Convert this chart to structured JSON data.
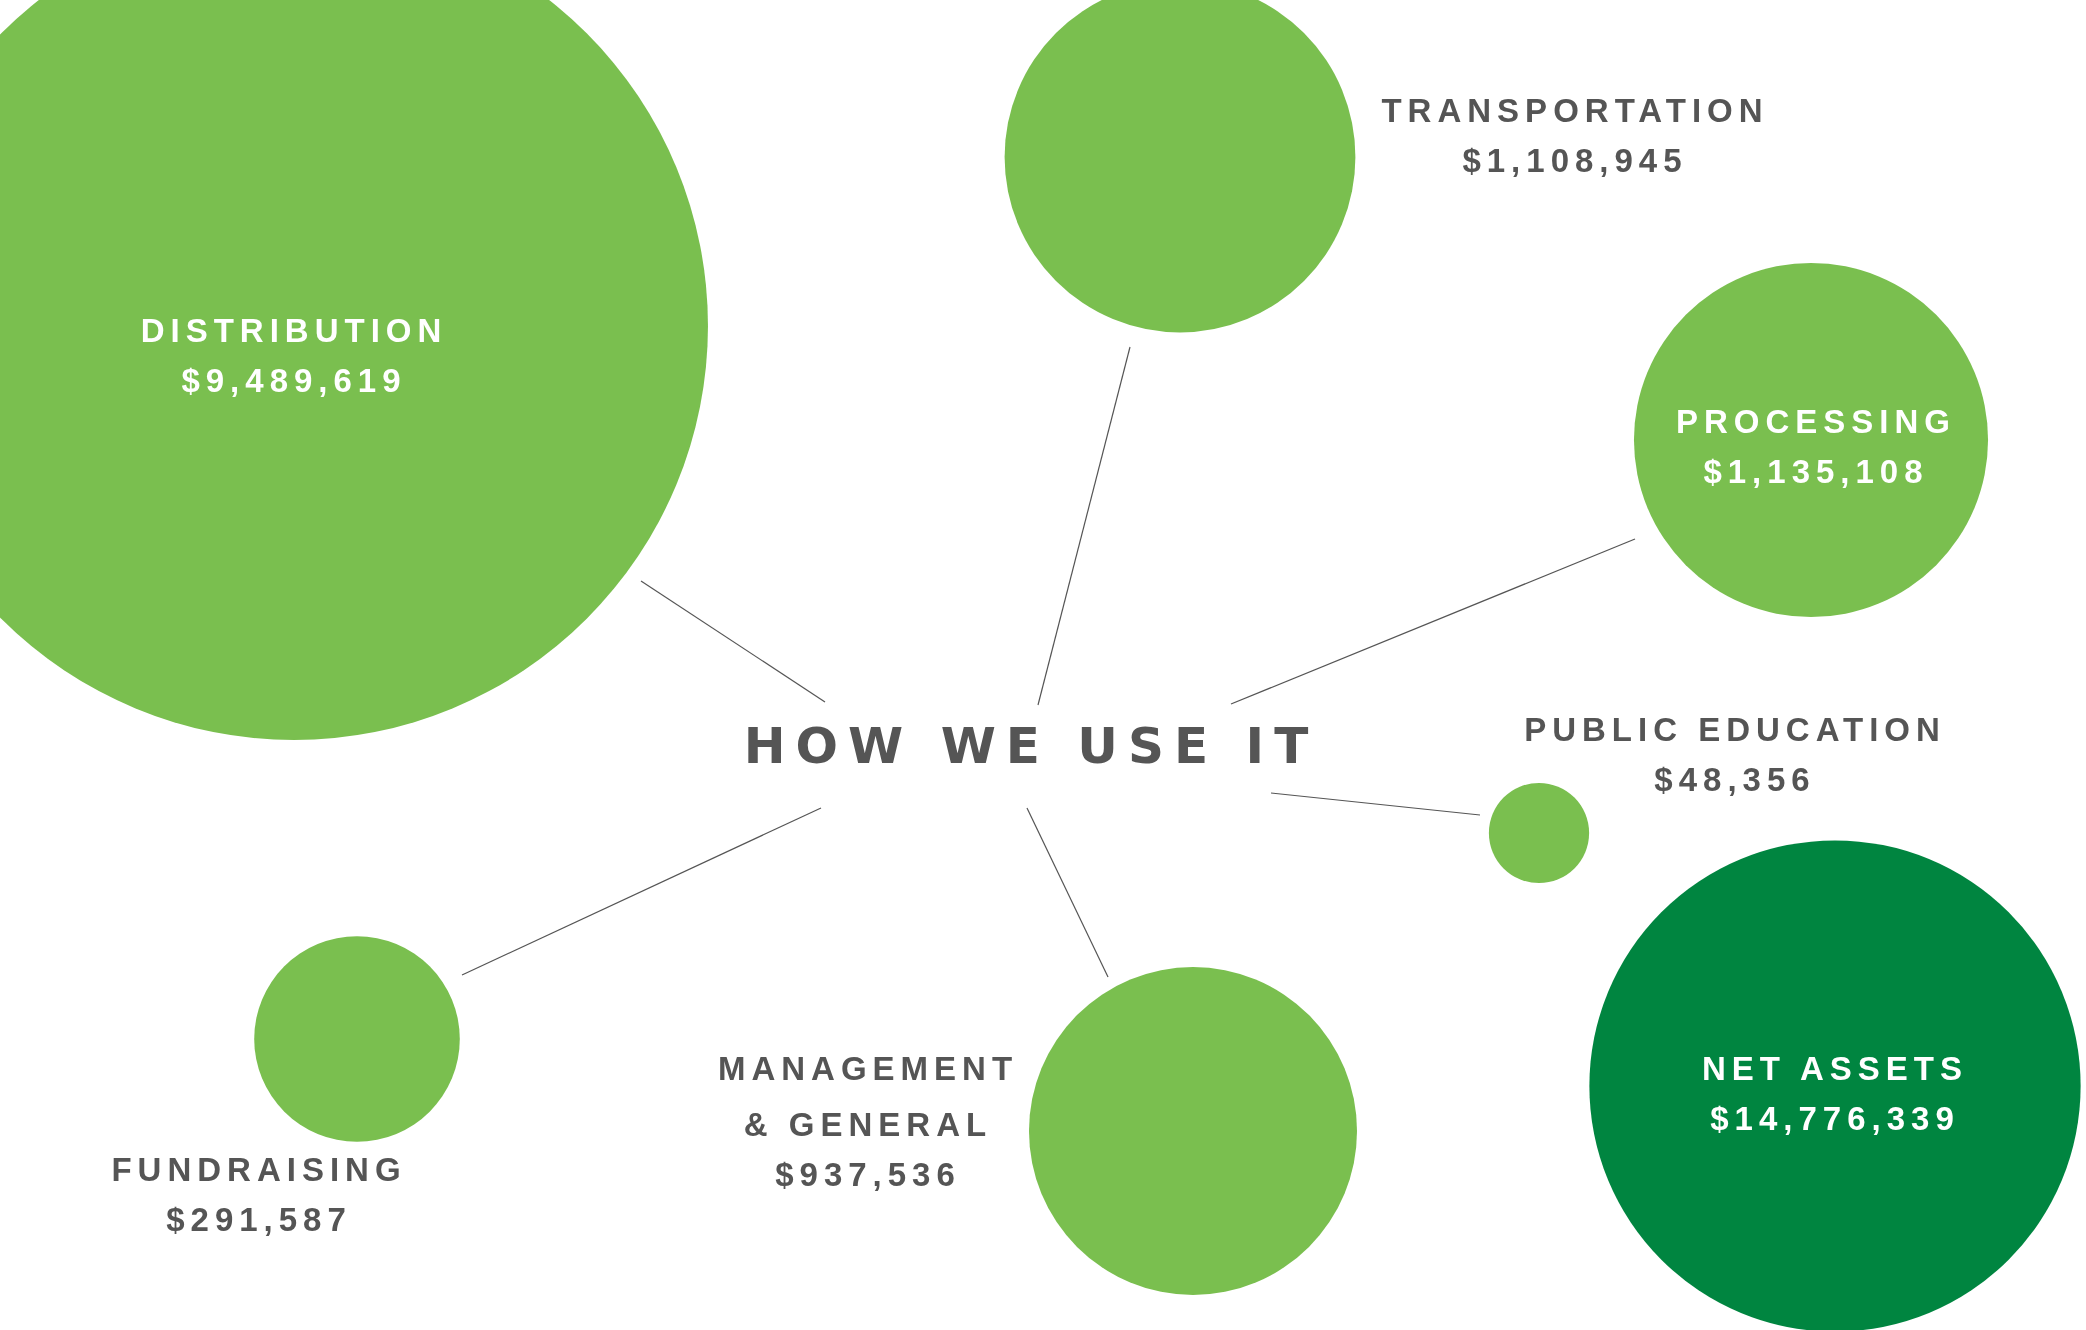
{
  "chart_data": {
    "type": "other",
    "title": "HOW WE USE IT",
    "categories": [
      "DISTRIBUTION",
      "TRANSPORTATION",
      "PROCESSING",
      "PUBLIC EDUCATION",
      "NET ASSETS",
      "MANAGEMENT & GENERAL",
      "FUNDRAISING"
    ],
    "values": [
      9489619,
      1108945,
      1135108,
      48356,
      14776339,
      937536,
      291587
    ],
    "value_labels": [
      "$9,489,619",
      "$1,108,945",
      "$1,135,108",
      "$48,356",
      "$14,776,339",
      "$937,536",
      "$291,587"
    ],
    "colors": [
      "#7abf4f",
      "#7abf4f",
      "#7abf4f",
      "#7abf4f",
      "#008540",
      "#7abf4f",
      "#7abf4f"
    ]
  }
}
